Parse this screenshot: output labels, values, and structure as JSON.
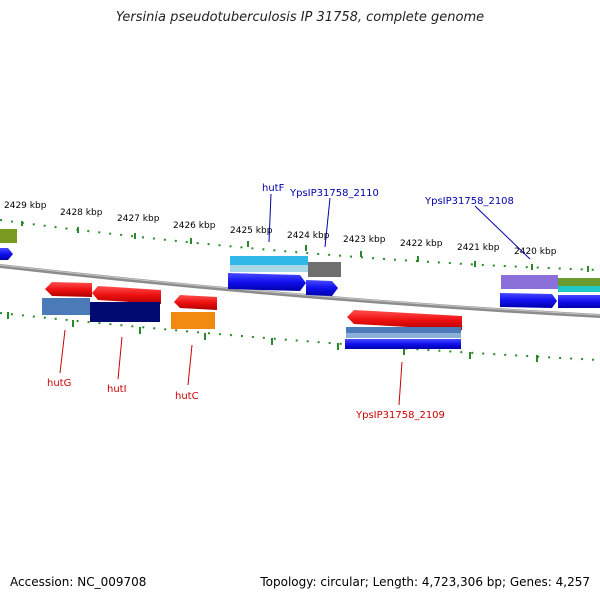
{
  "title": "Yersinia pseudotuberculosis IP 31758, complete genome",
  "footer": {
    "accession": "Accession: NC_009708",
    "topology": "Topology: circular; Length: 4,723,306 bp; Genes: 4,257"
  },
  "ruler": {
    "labels": [
      "2429 kbp",
      "2428 kbp",
      "2427 kbp",
      "2426 kbp",
      "2425 kbp",
      "2424 kbp",
      "2423 kbp",
      "2422 kbp",
      "2421 kbp",
      "2420 kbp"
    ]
  },
  "genes": {
    "top": [
      "hutF",
      "YpsIP31758_2110",
      "YpsIP31758_2108"
    ],
    "bottom": [
      "hutG",
      "hutI",
      "hutC",
      "YpsIP31758_2109"
    ]
  },
  "colors": {
    "forward_label": "#0000aa",
    "reverse_label": "#cc0000",
    "tick": "#2a8a2a",
    "backbone": "#8c8c8c",
    "cds_forward": "#1010ee",
    "cds_reverse": "#ee1010"
  }
}
